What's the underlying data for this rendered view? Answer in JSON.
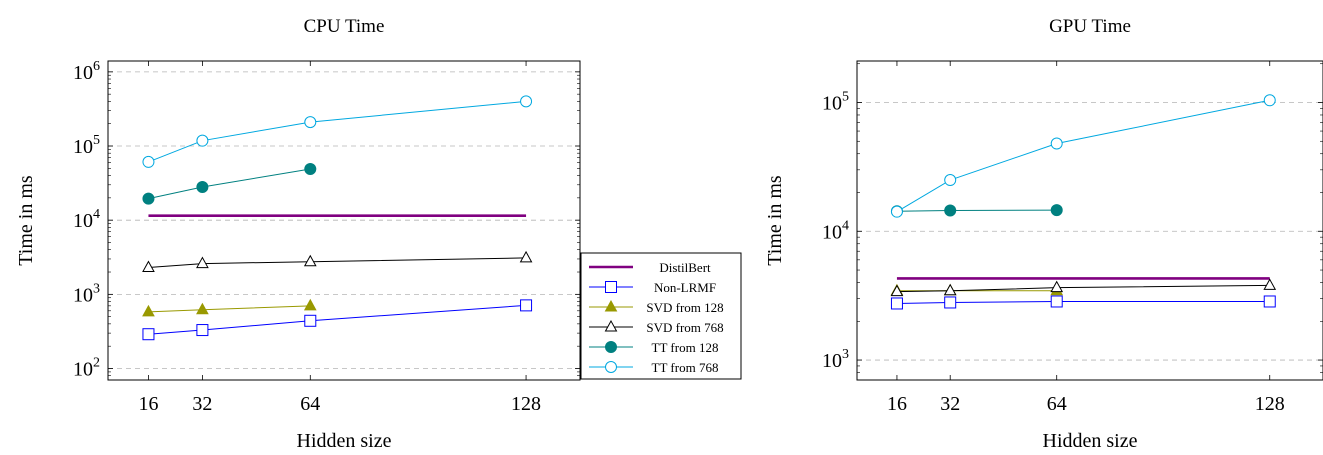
{
  "chart_data": [
    {
      "type": "line",
      "title": "CPU Time",
      "xlabel": "Hidden size",
      "ylabel": "Time in ms",
      "xscale": "linear",
      "yscale": "log",
      "xlim": [
        4,
        144
      ],
      "ylim": [
        70,
        1400000
      ],
      "xticks": [
        16,
        32,
        64,
        128
      ],
      "xtick_labels": [
        "16",
        "32",
        "64",
        "128"
      ],
      "yticks": [
        100,
        1000,
        10000,
        100000,
        1000000
      ],
      "ytick_labels": [
        {
          "base": "10",
          "exp": "2"
        },
        {
          "base": "10",
          "exp": "3"
        },
        {
          "base": "10",
          "exp": "4"
        },
        {
          "base": "10",
          "exp": "5"
        },
        {
          "base": "10",
          "exp": "6"
        }
      ],
      "grid": "horizontal-dashed",
      "legend": "right",
      "series": [
        {
          "name": "DistilBert",
          "color": "#800080",
          "marker": "none",
          "x": [
            16,
            128
          ],
          "values": [
            11500,
            11500
          ]
        },
        {
          "name": "Non-LRMF",
          "color": "#0000ff",
          "marker": "square-open",
          "x": [
            16,
            32,
            64,
            128
          ],
          "values": [
            290,
            330,
            440,
            710
          ]
        },
        {
          "name": "SVD from 128",
          "color": "#999900",
          "marker": "triangle-filled",
          "x": [
            16,
            32,
            64
          ],
          "values": [
            580,
            620,
            700
          ]
        },
        {
          "name": "SVD from 768",
          "color": "#000000",
          "marker": "triangle-open",
          "x": [
            16,
            32,
            64,
            128
          ],
          "values": [
            2300,
            2600,
            2750,
            3100
          ]
        },
        {
          "name": "TT from 128",
          "color": "#008080",
          "marker": "circle-filled",
          "x": [
            16,
            32,
            64
          ],
          "values": [
            19500,
            28000,
            49000
          ]
        },
        {
          "name": "TT from 768",
          "color": "#00a8e0",
          "marker": "circle-open",
          "x": [
            16,
            32,
            64,
            128
          ],
          "values": [
            61000,
            118000,
            210000,
            400000
          ]
        }
      ]
    },
    {
      "type": "line",
      "title": "GPU Time",
      "xlabel": "Hidden size",
      "ylabel": "Time in ms",
      "xscale": "linear",
      "yscale": "log",
      "xlim": [
        4,
        144
      ],
      "ylim": [
        700,
        210000
      ],
      "xticks": [
        16,
        32,
        64,
        128
      ],
      "xtick_labels": [
        "16",
        "32",
        "64",
        "128"
      ],
      "yticks": [
        1000,
        10000,
        100000
      ],
      "ytick_labels": [
        {
          "base": "10",
          "exp": "3"
        },
        {
          "base": "10",
          "exp": "4"
        },
        {
          "base": "10",
          "exp": "5"
        }
      ],
      "grid": "horizontal-dashed",
      "series": [
        {
          "name": "DistilBert",
          "color": "#800080",
          "marker": "none",
          "x": [
            16,
            128
          ],
          "values": [
            4300,
            4300
          ]
        },
        {
          "name": "Non-LRMF",
          "color": "#0000ff",
          "marker": "square-open",
          "x": [
            16,
            32,
            64,
            128
          ],
          "values": [
            2750,
            2800,
            2850,
            2850
          ]
        },
        {
          "name": "SVD from 128",
          "color": "#999900",
          "marker": "triangle-filled",
          "x": [
            16,
            32,
            64
          ],
          "values": [
            3450,
            3450,
            3450
          ]
        },
        {
          "name": "SVD from 768",
          "color": "#000000",
          "marker": "triangle-open",
          "x": [
            16,
            32,
            64,
            128
          ],
          "values": [
            3400,
            3450,
            3650,
            3800
          ]
        },
        {
          "name": "TT from 128",
          "color": "#008080",
          "marker": "circle-filled",
          "x": [
            16,
            32,
            64
          ],
          "values": [
            14300,
            14500,
            14600
          ]
        },
        {
          "name": "TT from 768",
          "color": "#00a8e0",
          "marker": "circle-open",
          "x": [
            16,
            32,
            64,
            128
          ],
          "values": [
            14200,
            25000,
            48000,
            104000
          ]
        }
      ]
    }
  ]
}
